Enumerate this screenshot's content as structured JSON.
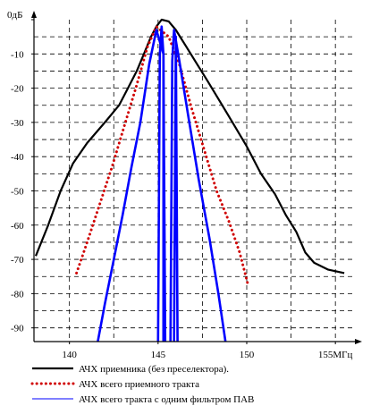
{
  "chart_data": {
    "type": "line",
    "x_ticks": [
      {
        "value": 140,
        "label": "140"
      },
      {
        "value": 145,
        "label": "145"
      },
      {
        "value": 150,
        "label": "150"
      },
      {
        "value": 155,
        "label": "155МГц"
      }
    ],
    "y_ticks": [
      {
        "value": 0,
        "label": "0дБ"
      },
      {
        "value": -10,
        "label": "-10"
      },
      {
        "value": -20,
        "label": "-20"
      },
      {
        "value": -30,
        "label": "-30"
      },
      {
        "value": -40,
        "label": "-40"
      },
      {
        "value": -50,
        "label": "-50"
      },
      {
        "value": -60,
        "label": "-60"
      },
      {
        "value": -70,
        "label": "-70"
      },
      {
        "value": -80,
        "label": "-80"
      },
      {
        "value": -90,
        "label": "-90"
      }
    ],
    "xlim": [
      138,
      156
    ],
    "ylim": [
      -94,
      0
    ],
    "grid": true,
    "legend_position": "bottom",
    "series": [
      {
        "name": "АЧХ  приемника   (без преселектора).",
        "color": "#000000",
        "style": "solid",
        "points": [
          [
            138.1,
            -69
          ],
          [
            138.8,
            -60
          ],
          [
            139.5,
            -50
          ],
          [
            140.2,
            -42
          ],
          [
            141.0,
            -36
          ],
          [
            142.0,
            -30
          ],
          [
            142.8,
            -25
          ],
          [
            143.3,
            -20
          ],
          [
            143.8,
            -15
          ],
          [
            144.2,
            -10
          ],
          [
            144.6,
            -5
          ],
          [
            144.9,
            -2
          ],
          [
            145.2,
            0
          ],
          [
            145.6,
            -0.5
          ],
          [
            146.0,
            -3
          ],
          [
            146.6,
            -8
          ],
          [
            147.2,
            -13
          ],
          [
            147.8,
            -18
          ],
          [
            148.5,
            -24
          ],
          [
            149.2,
            -30
          ],
          [
            150.0,
            -37
          ],
          [
            150.8,
            -45
          ],
          [
            151.6,
            -51
          ],
          [
            152.2,
            -57
          ],
          [
            152.8,
            -62
          ],
          [
            153.3,
            -68
          ],
          [
            153.8,
            -71
          ],
          [
            154.6,
            -73
          ],
          [
            155.5,
            -74
          ]
        ]
      },
      {
        "name": "АЧХ  всего приемного тракта",
        "color": "#d00000",
        "style": "dotted",
        "points": [
          [
            140.4,
            -74
          ],
          [
            141.0,
            -65
          ],
          [
            141.7,
            -54
          ],
          [
            142.4,
            -43
          ],
          [
            143.1,
            -31
          ],
          [
            143.8,
            -19
          ],
          [
            144.4,
            -8
          ],
          [
            144.9,
            -2
          ],
          [
            145.6,
            -5
          ],
          [
            146.2,
            -13
          ],
          [
            146.9,
            -26
          ],
          [
            147.6,
            -38
          ],
          [
            148.3,
            -50
          ],
          [
            149.0,
            -59
          ],
          [
            149.6,
            -68
          ],
          [
            150.1,
            -78
          ]
        ]
      },
      {
        "name": "АЧХ всего тракта  с одним фильтром  ПАВ",
        "color": "#0000ff",
        "style": "solid",
        "points": [
          [
            141.6,
            -94
          ],
          [
            142.0,
            -83
          ],
          [
            142.5,
            -70
          ],
          [
            143.0,
            -57
          ],
          [
            143.5,
            -43
          ],
          [
            144.0,
            -30
          ],
          [
            144.5,
            -13
          ],
          [
            144.9,
            -3
          ],
          [
            145.3,
            -10
          ],
          [
            145.4,
            -94
          ]
        ]
      },
      {
        "name": "",
        "color": "#0000ff",
        "style": "solid",
        "points": [
          [
            145.7,
            -94
          ],
          [
            145.8,
            -12
          ],
          [
            145.9,
            -3
          ],
          [
            146.2,
            -12
          ],
          [
            146.7,
            -28
          ],
          [
            147.3,
            -47
          ],
          [
            147.9,
            -64
          ],
          [
            148.4,
            -80
          ],
          [
            148.8,
            -94
          ]
        ]
      },
      {
        "name": "",
        "color": "#0000ff",
        "style": "solid",
        "points": [
          [
            145.0,
            -94
          ],
          [
            145.1,
            -10
          ],
          [
            145.2,
            -2
          ],
          [
            145.3,
            -10
          ],
          [
            145.3,
            -94
          ]
        ]
      },
      {
        "name": "",
        "color": "#0000ff",
        "style": "solid",
        "points": [
          [
            145.9,
            -94
          ],
          [
            146.0,
            -5
          ],
          [
            146.1,
            -94
          ]
        ]
      }
    ]
  }
}
